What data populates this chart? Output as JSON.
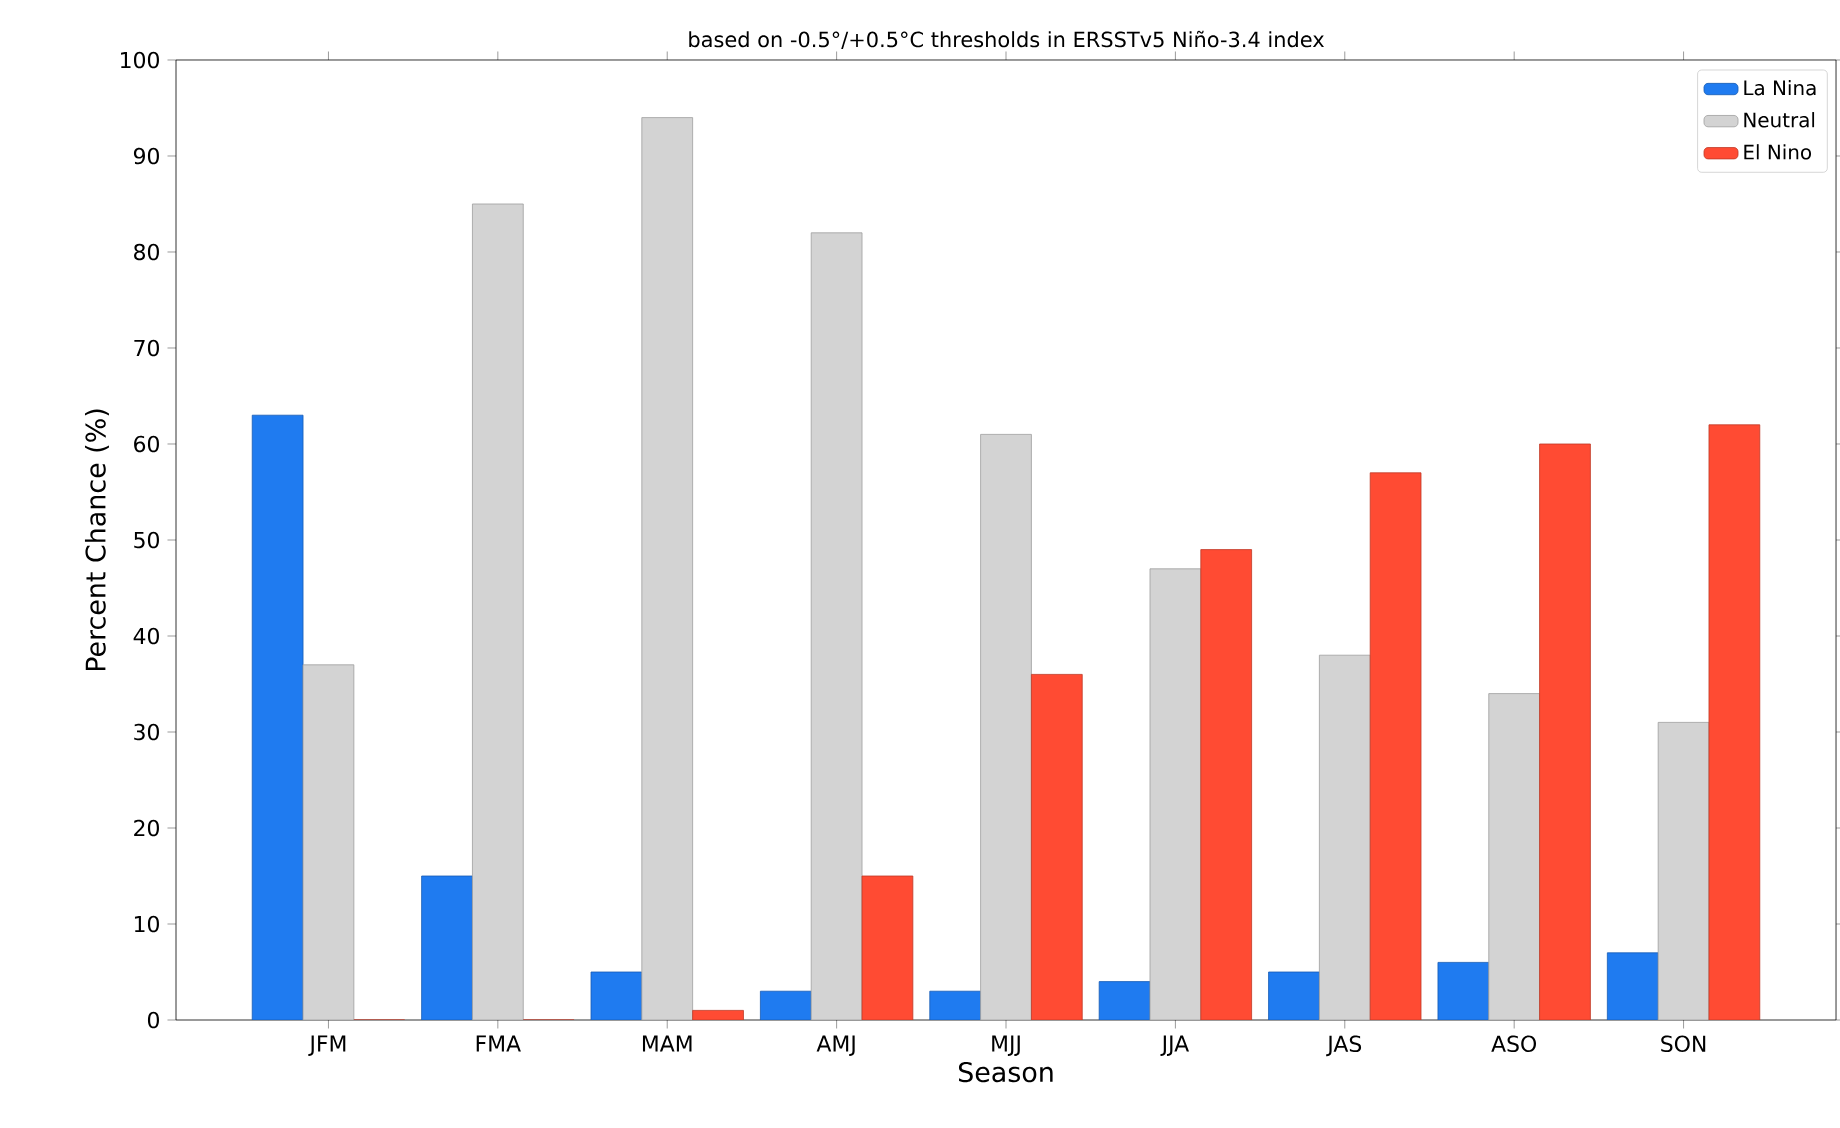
{
  "chart_data": {
    "type": "bar",
    "title": "based on -0.5°/+0.5°C thresholds in ERSSTv5 Niño-3.4 index",
    "xlabel": "Season",
    "ylabel": "Percent Chance (%)",
    "categories": [
      "JFM",
      "FMA",
      "MAM",
      "AMJ",
      "MJJ",
      "JJA",
      "JAS",
      "ASO",
      "SON"
    ],
    "series": [
      {
        "name": "La Nina",
        "color": "#1f7bf0",
        "values": [
          63,
          15,
          5,
          3,
          3,
          4,
          5,
          6,
          7
        ]
      },
      {
        "name": "Neutral",
        "color": "#d3d3d3",
        "values": [
          37,
          85,
          94,
          82,
          61,
          47,
          38,
          34,
          31
        ]
      },
      {
        "name": "El Nino",
        "color": "#ff4b33",
        "values": [
          0,
          0,
          1,
          15,
          36,
          49,
          57,
          60,
          62
        ]
      }
    ],
    "ylim": [
      0,
      100
    ],
    "yticks": [
      0,
      10,
      20,
      30,
      40,
      50,
      60,
      70,
      80,
      90,
      100
    ],
    "grid": false,
    "legend": "top right"
  }
}
